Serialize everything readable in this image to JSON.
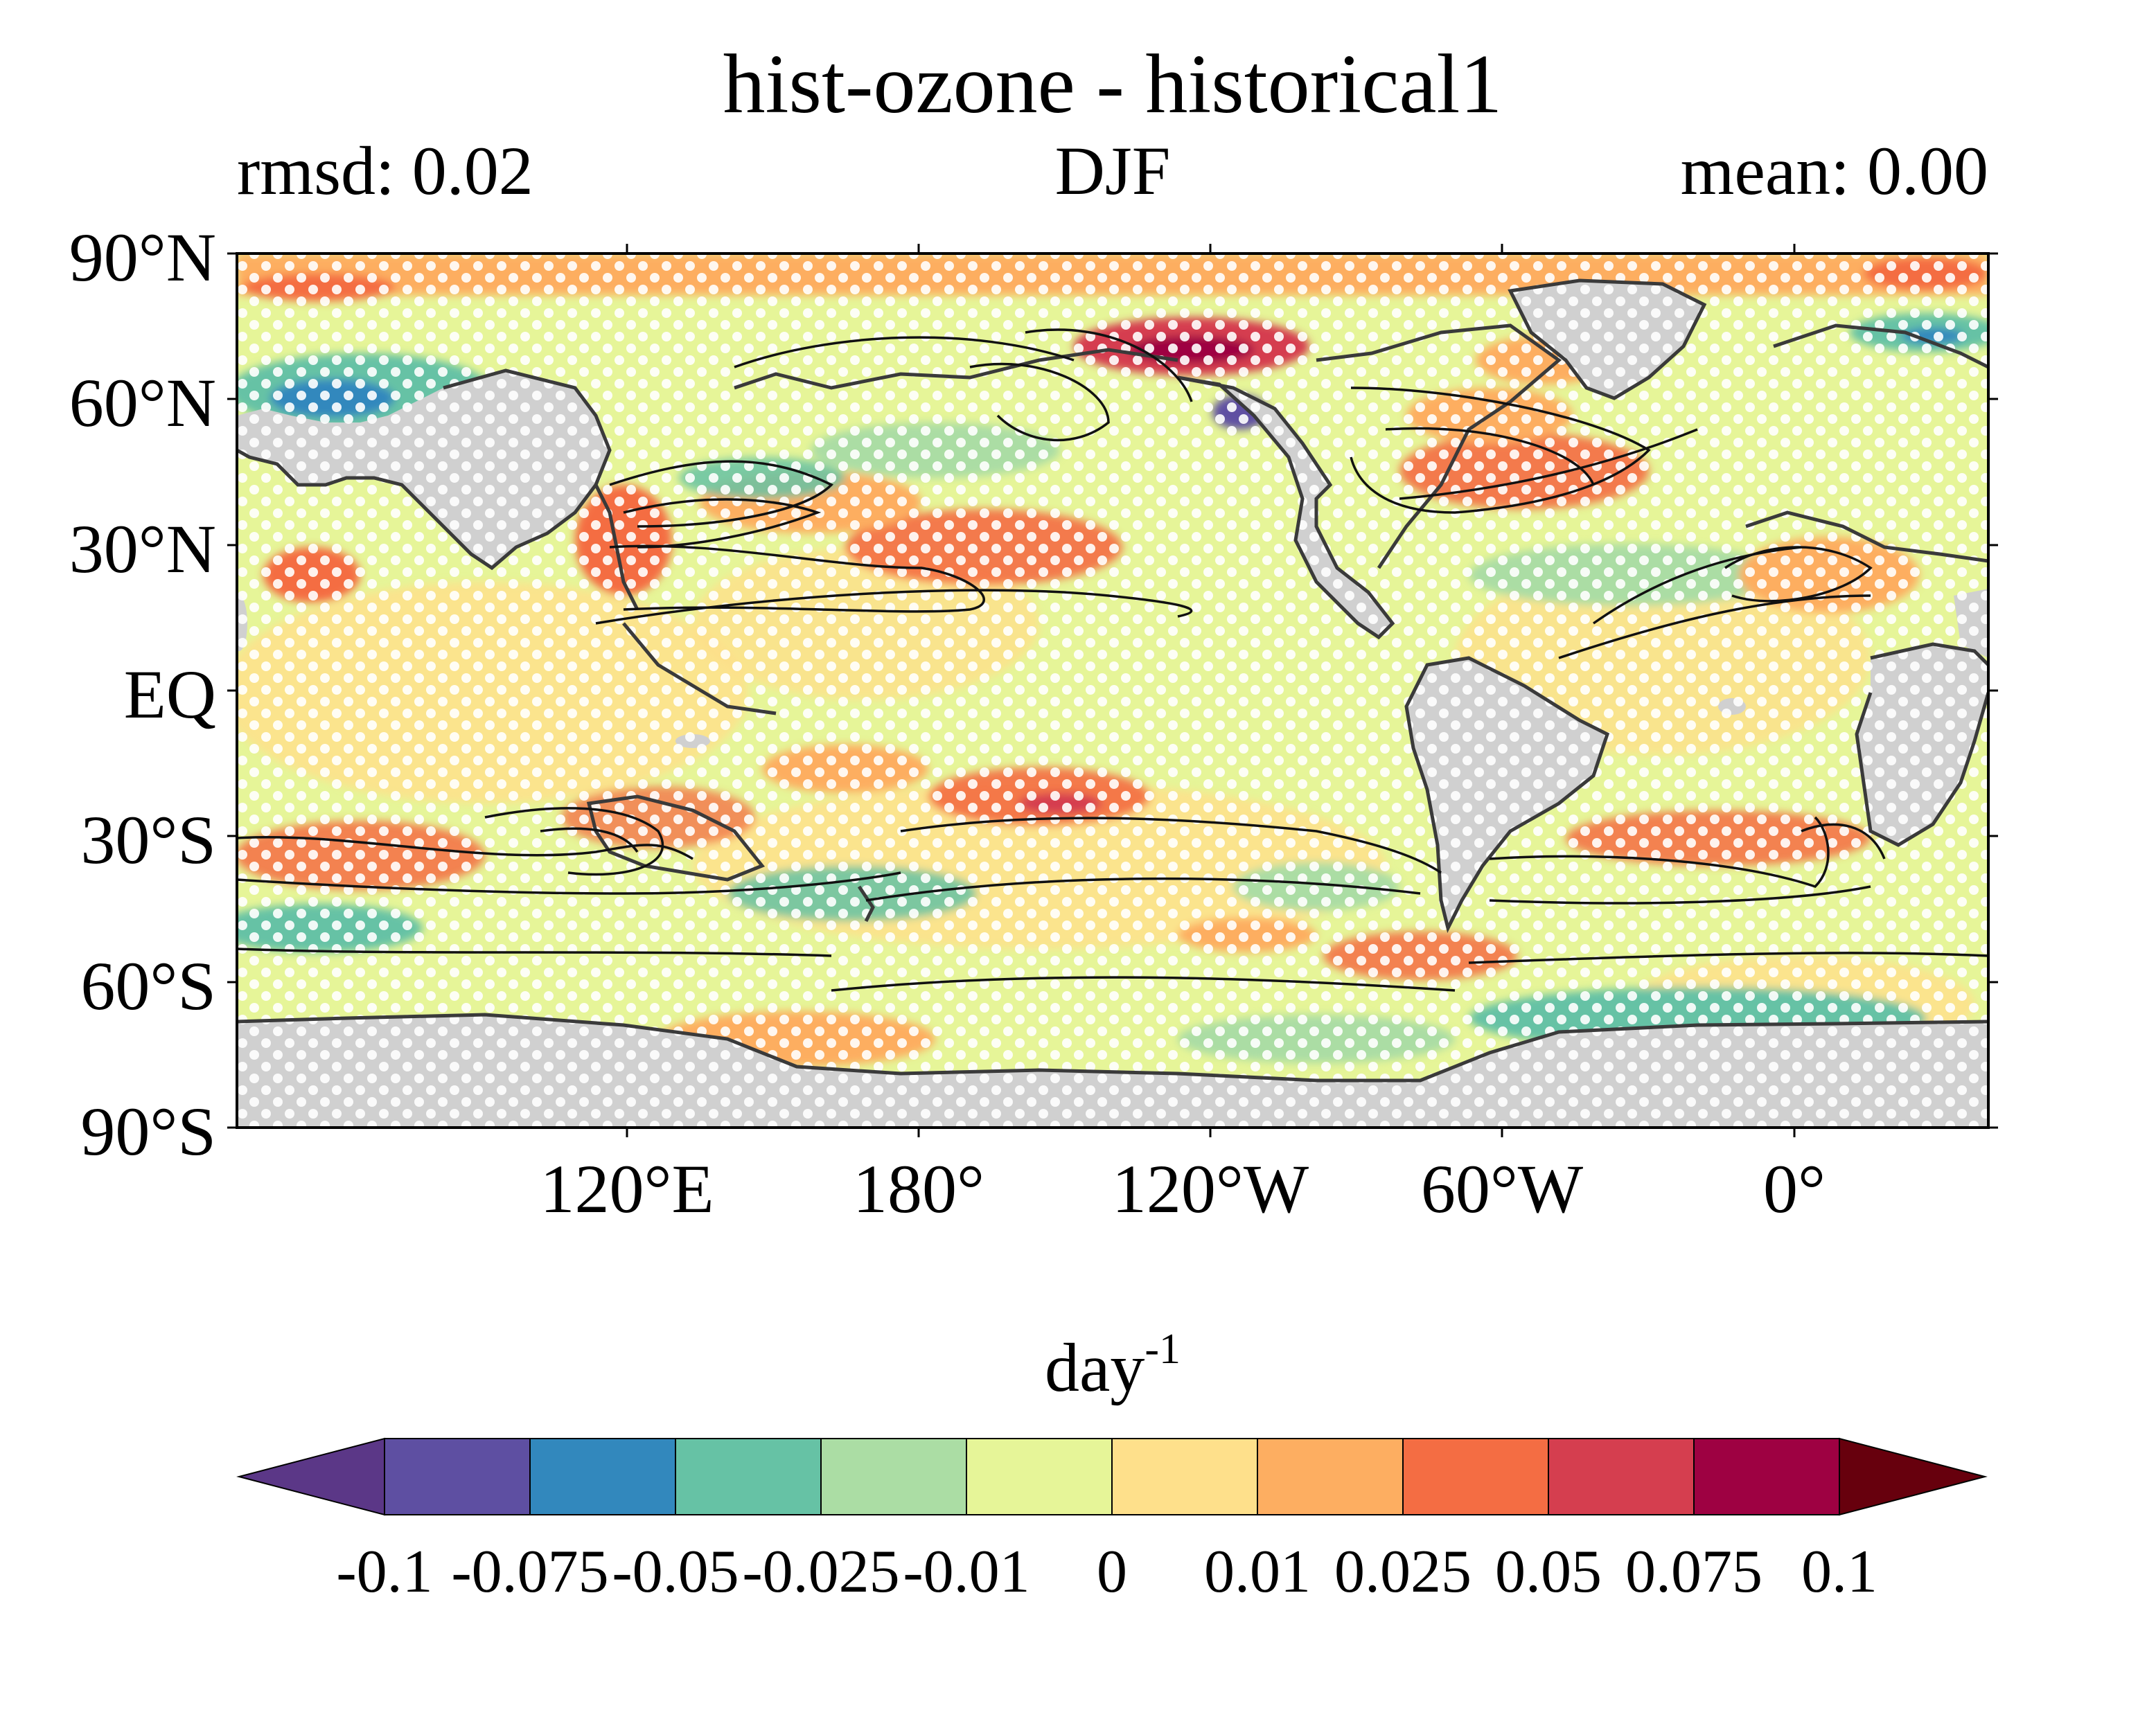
{
  "title": "hist-ozone - historical1",
  "left_annotation": "rmsd: 0.02",
  "center_annotation": "DJF",
  "right_annotation": "mean: 0.00",
  "lat_labels": [
    "90°N",
    "60°N",
    "30°N",
    "EQ",
    "30°S",
    "60°S",
    "90°S"
  ],
  "lon_labels": [
    "120°E",
    "180°",
    "120°W",
    "60°W",
    "0°"
  ],
  "colorbar": {
    "unit_base": "day",
    "unit_exponent": "-1",
    "levels": [
      "-0.1",
      "-0.075",
      "-0.05",
      "-0.025",
      "-0.01",
      "0",
      "0.01",
      "0.025",
      "0.05",
      "0.075",
      "0.1"
    ],
    "colors": [
      "#5e4fa2",
      "#3288bd",
      "#66c2a5",
      "#abdda4",
      "#e6f598",
      "#fee08b",
      "#fdae61",
      "#f46d43",
      "#d53e4f",
      "#9e0142"
    ],
    "under_color": "#5b3787",
    "over_color": "#67000d"
  },
  "land_color": "#d0d0d0",
  "stipple_color": "#ffffff"
}
